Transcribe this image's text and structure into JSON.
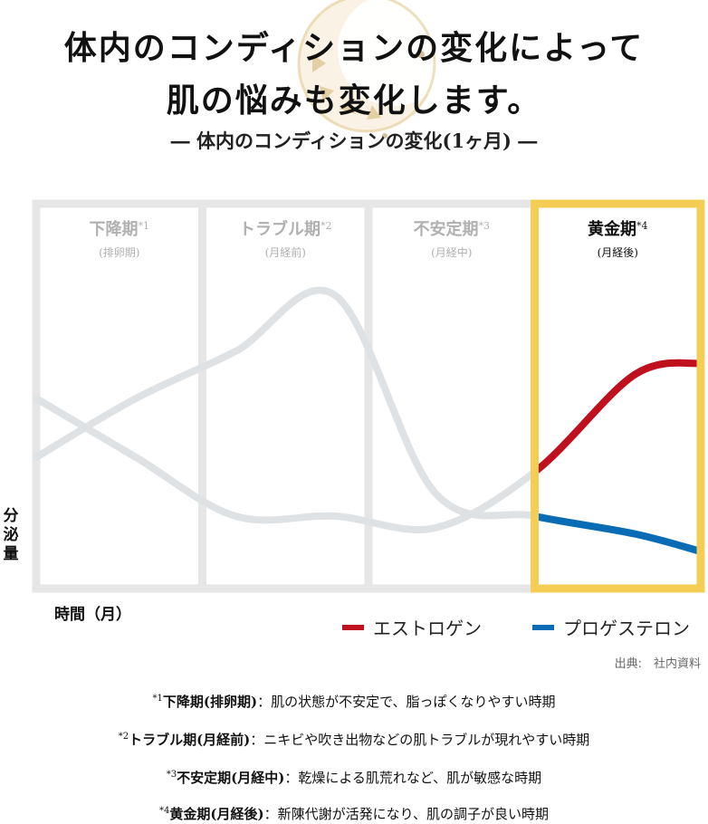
{
  "headline": {
    "line1": "体内のコンディションの変化によって",
    "line2": "肌の悩みも変化します。",
    "subtitle": "― 体内のコンディションの変化(1ヶ月) ―"
  },
  "chart_data": {
    "type": "line",
    "title": "",
    "ylabel": "分泌量",
    "xlabel": "時間（月）",
    "grid": false,
    "legend_position": "bottom-right",
    "x": [
      0,
      15,
      30,
      45,
      60,
      75,
      90,
      100
    ],
    "xlim": [
      0,
      100
    ],
    "ylim": [
      0,
      100
    ],
    "phases": [
      {
        "name": "下降期",
        "mark": "*1",
        "sub": "(排卵期)",
        "start": 0,
        "end": 25,
        "highlight": false
      },
      {
        "name": "トラブル期",
        "mark": "*2",
        "sub": "(月経前)",
        "start": 25,
        "end": 50,
        "highlight": false
      },
      {
        "name": "不安定期",
        "mark": "*3",
        "sub": "(月経中)",
        "start": 50,
        "end": 75,
        "highlight": true
      },
      {
        "name": "黄金期",
        "mark": "*4",
        "sub": "(月経後)",
        "start": 75,
        "end": 100,
        "highlight": true
      }
    ],
    "series": [
      {
        "name": "エストロゲン",
        "color": "#c0101e",
        "values": [
          60,
          40,
          20,
          20,
          16,
          35,
          68,
          72
        ]
      },
      {
        "name": "プロゲステロン",
        "color": "#0a6cb5",
        "values": [
          40,
          60,
          76,
          95,
          28,
          20,
          14,
          8
        ]
      }
    ]
  },
  "legend": [
    {
      "label": "エストロゲン",
      "color": "#c0101e"
    },
    {
      "label": "プロゲステロン",
      "color": "#0a6cb5"
    }
  ],
  "source": "出典:　社内資料",
  "notes": [
    {
      "mark": "*1",
      "term": "下降期(排卵期)",
      "text": "：肌の状態が不安定で、脂っぽくなりやすい時期"
    },
    {
      "mark": "*2",
      "term": "トラブル期(月経前)",
      "text": "：ニキビや吹き出物などの肌トラブルが現れやすい時期"
    },
    {
      "mark": "*3",
      "term": "不安定期(月経中)",
      "text": "：乾燥による肌荒れなど、肌が敏感な時期"
    },
    {
      "mark": "*4",
      "term": "黄金期(月経後)",
      "text": "：新陳代謝が活発になり、肌の調子が良い時期"
    }
  ],
  "colors": {
    "panel_border": "#e6e6e6",
    "highlight_border": "#f4cd55",
    "faded_curve": "#dfe2e4",
    "phase_title_faded": "#b0b0b0",
    "phase_title_active": "#111111"
  }
}
